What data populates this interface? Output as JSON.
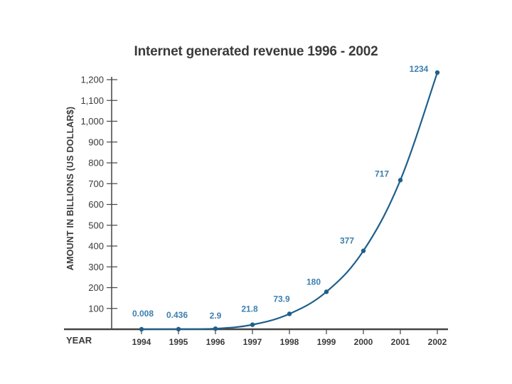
{
  "colors": {
    "series": "#1f5f8b",
    "label": "#3a7fae",
    "axis": "#444444",
    "text": "#3a3a3a"
  },
  "chart_data": {
    "type": "line",
    "title": "Internet generated revenue 1996 - 2002",
    "xlabel": "YEAR",
    "ylabel": "AMOUNT IN BILLIONS  (US DOLLAR$)",
    "categories": [
      "1994",
      "1995",
      "1996",
      "1997",
      "1998",
      "1999",
      "2000",
      "2001",
      "2002"
    ],
    "series": [
      {
        "name": "Internet generated revenue",
        "values": [
          0.008,
          0.436,
          2.9,
          21.8,
          73.9,
          180,
          377,
          717,
          1234
        ],
        "labels": [
          "0.008",
          "0.436",
          "2.9",
          "21.8",
          "73.9",
          "180",
          "377",
          "717",
          "1234"
        ]
      }
    ],
    "yticks": [
      100,
      200,
      300,
      400,
      500,
      600,
      700,
      800,
      900,
      1000,
      1100,
      1200
    ],
    "ytick_labels": [
      "100",
      "200",
      "300",
      "400",
      "500",
      "600",
      "700",
      "800",
      "900",
      "1,000",
      "1,100",
      "1,200"
    ],
    "ylim": [
      0,
      1234
    ],
    "grid": false,
    "legend": "none"
  }
}
